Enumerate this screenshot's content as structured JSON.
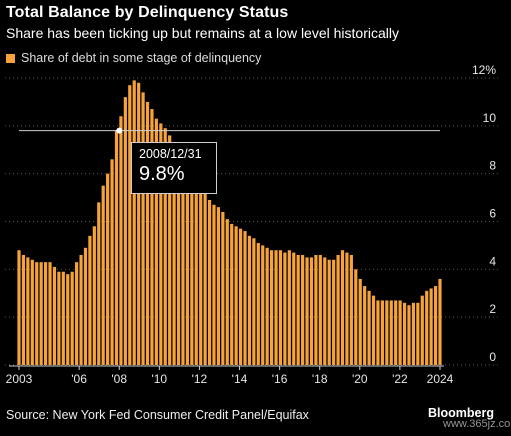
{
  "header": {
    "title": "Total Balance by Delinquency Status",
    "subtitle": "Share has been ticking up but remains at a low level historically"
  },
  "footer": {
    "source": "Source: New York Fed Consumer Credit Panel/Equifax",
    "brand": "Bloomberg",
    "watermark": "www.365jz.com"
  },
  "tooltip": {
    "date": "2008/12/31",
    "value": "9.8%"
  },
  "colors": {
    "bar": "#f5a33a",
    "background": "#000000",
    "grid": "#555555",
    "crosshair": "#d0d0d0"
  },
  "chart_data": {
    "type": "bar",
    "title": "Total Balance by Delinquency Status",
    "subtitle": "Share has been ticking up but remains at a low level historically",
    "series": [
      {
        "name": "Share of debt in some stage of delinquency",
        "values": [
          4.8,
          4.6,
          4.5,
          4.4,
          4.3,
          4.3,
          4.3,
          4.3,
          4.1,
          3.9,
          3.9,
          3.8,
          3.9,
          4.3,
          4.6,
          4.9,
          5.4,
          5.8,
          6.8,
          7.5,
          8.0,
          8.6,
          9.8,
          10.4,
          11.2,
          11.7,
          11.9,
          11.8,
          11.4,
          11.0,
          10.7,
          10.3,
          10.1,
          9.9,
          9.6,
          9.1,
          8.8,
          8.6,
          8.4,
          8.1,
          7.8,
          7.5,
          7.2,
          6.9,
          6.7,
          6.6,
          6.4,
          6.1,
          5.9,
          5.8,
          5.7,
          5.6,
          5.4,
          5.3,
          5.1,
          5.0,
          4.9,
          4.8,
          4.8,
          4.8,
          4.7,
          4.8,
          4.7,
          4.6,
          4.6,
          4.5,
          4.5,
          4.6,
          4.6,
          4.5,
          4.4,
          4.4,
          4.6,
          4.8,
          4.7,
          4.6,
          4.0,
          3.6,
          3.3,
          3.1,
          2.9,
          2.7,
          2.7,
          2.7,
          2.7,
          2.7,
          2.7,
          2.6,
          2.5,
          2.6,
          2.6,
          2.9,
          3.1,
          3.2,
          3.3,
          3.6
        ]
      }
    ],
    "x_tick_labels": [
      "2003",
      "'06",
      "'08",
      "'10",
      "'12",
      "'14",
      "'16",
      "'18",
      "'20",
      "'22",
      "2024"
    ],
    "x_tick_years": [
      2003,
      2006,
      2008,
      2010,
      2012,
      2014,
      2016,
      2018,
      2020,
      2022,
      2024
    ],
    "x_start_year": 2003,
    "x_end_year": 2024,
    "y_tick_labels": [
      "12%",
      "10",
      "8",
      "6",
      "4",
      "2",
      "0"
    ],
    "y_tick_values": [
      12,
      10,
      8,
      6,
      4,
      2,
      0
    ],
    "ylim": [
      0,
      12
    ],
    "grid": true,
    "legend_position": "top-left",
    "highlight": {
      "date": "2008/12/31",
      "value": 9.8
    }
  }
}
